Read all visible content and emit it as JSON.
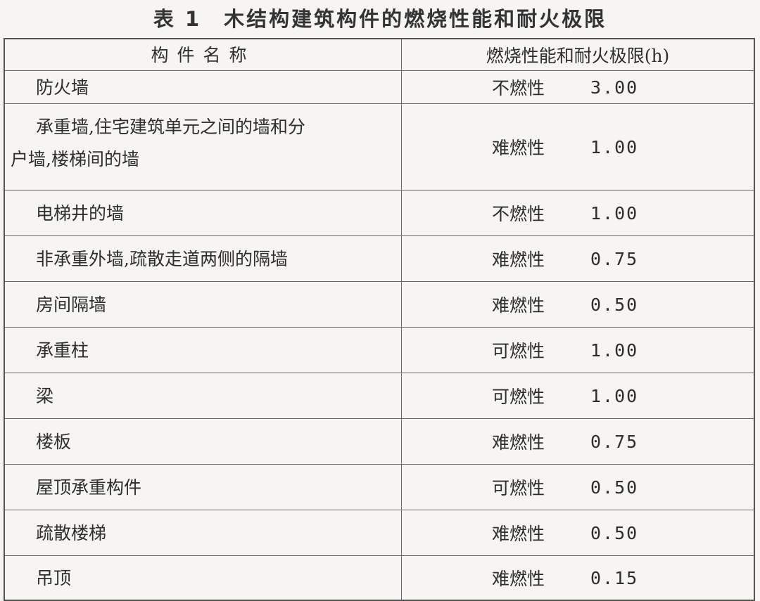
{
  "title": "表 1　木结构建筑构件的燃烧性能和耐火极限",
  "headers": {
    "name": "构件名称",
    "rating": "燃烧性能和耐火极限(h)"
  },
  "rows": [
    {
      "name": "防火墙",
      "class": "不燃性",
      "hours": "3.00"
    },
    {
      "name_line1": "承重墙,住宅建筑单元之间的墙和分",
      "name_line2": "户墙,楼梯间的墙",
      "class": "难燃性",
      "hours": "1.00"
    },
    {
      "name": "电梯井的墙",
      "class": "不燃性",
      "hours": "1.00"
    },
    {
      "name": "非承重外墙,疏散走道两侧的隔墙",
      "class": "难燃性",
      "hours": "0.75"
    },
    {
      "name": "房间隔墙",
      "class": "难燃性",
      "hours": "0.50"
    },
    {
      "name": "承重柱",
      "class": "可燃性",
      "hours": "1.00"
    },
    {
      "name": "梁",
      "class": "可燃性",
      "hours": "1.00"
    },
    {
      "name": "楼板",
      "class": "难燃性",
      "hours": "0.75"
    },
    {
      "name": "屋顶承重构件",
      "class": "可燃性",
      "hours": "0.50"
    },
    {
      "name": "疏散楼梯",
      "class": "难燃性",
      "hours": "0.50"
    },
    {
      "name": "吊顶",
      "class": "难燃性",
      "hours": "0.15"
    }
  ]
}
